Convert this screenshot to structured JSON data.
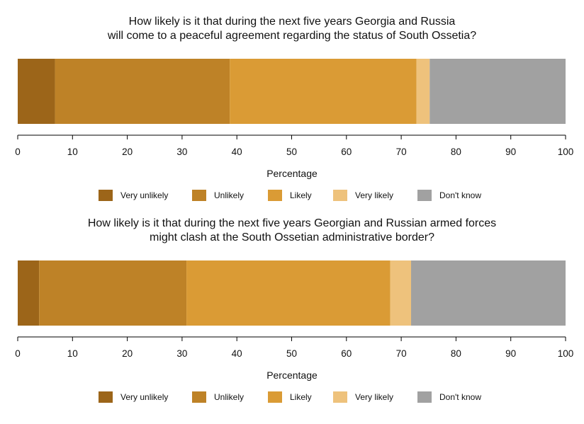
{
  "chart_data": [
    {
      "type": "bar",
      "orientation": "horizontal-stacked",
      "title_lines": [
        "How likely is it that during the next five years Georgia and Russia",
        "will come to a peaceful agreement regarding the status of South Ossetia?"
      ],
      "xlabel": "Percentage",
      "xlim": [
        0,
        100
      ],
      "xticks": [
        "0",
        "10",
        "20",
        "30",
        "40",
        "50",
        "60",
        "70",
        "80",
        "90",
        "100"
      ],
      "series": [
        {
          "name": "Very unlikely",
          "value": 6.8,
          "color": "#9C6519"
        },
        {
          "name": "Unlikely",
          "value": 31.9,
          "color": "#BE8227"
        },
        {
          "name": "Likely",
          "value": 34.1,
          "color": "#DA9B35"
        },
        {
          "name": "Very likely",
          "value": 2.4,
          "color": "#EEC27C"
        },
        {
          "name": "Don't know",
          "value": 24.8,
          "color": "#A1A1A1"
        }
      ],
      "legend_position": "bottom"
    },
    {
      "type": "bar",
      "orientation": "horizontal-stacked",
      "title_lines": [
        "How likely is it that during the next five years Georgian and Russian armed forces",
        "might clash at the South Ossetian administrative border?"
      ],
      "xlabel": "Percentage",
      "xlim": [
        0,
        100
      ],
      "xticks": [
        "0",
        "10",
        "20",
        "30",
        "40",
        "50",
        "60",
        "70",
        "80",
        "90",
        "100"
      ],
      "series": [
        {
          "name": "Very unlikely",
          "value": 3.9,
          "color": "#9C6519"
        },
        {
          "name": "Unlikely",
          "value": 26.9,
          "color": "#BE8227"
        },
        {
          "name": "Likely",
          "value": 37.2,
          "color": "#DA9B35"
        },
        {
          "name": "Very likely",
          "value": 3.8,
          "color": "#EEC27C"
        },
        {
          "name": "Don't know",
          "value": 28.2,
          "color": "#A1A1A1"
        }
      ],
      "legend_position": "bottom"
    }
  ]
}
